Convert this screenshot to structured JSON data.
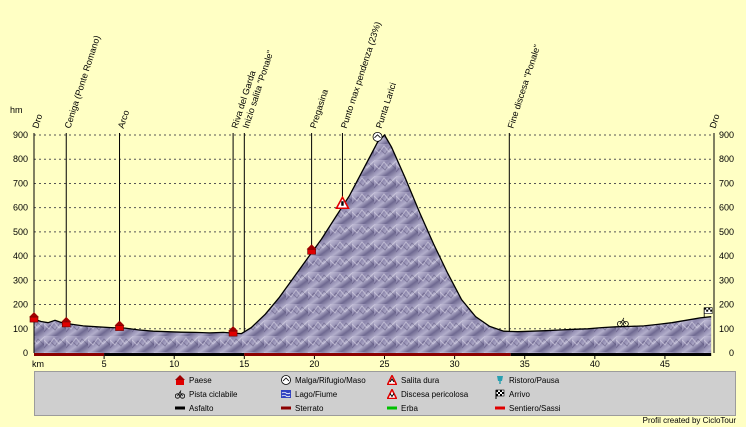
{
  "chart_data": {
    "type": "area",
    "ylabel": "hm",
    "xlabel": "km",
    "xlim": [
      0,
      48.5
    ],
    "ylim": [
      0,
      900
    ],
    "x_ticks": [
      5,
      10,
      15,
      20,
      25,
      30,
      35,
      40,
      45
    ],
    "y_ticks": [
      0,
      100,
      200,
      300,
      400,
      500,
      600,
      700,
      800,
      900
    ],
    "profile": {
      "x": [
        0,
        0.5,
        1.0,
        1.5,
        2.0,
        2.5,
        3.5,
        4.5,
        5.5,
        6.5,
        7.5,
        8.5,
        9.5,
        10.5,
        11.5,
        12.5,
        13.5,
        14.2,
        14.8,
        15.5,
        16.5,
        17.5,
        18.5,
        19.5,
        20.5,
        21.5,
        22.5,
        23.5,
        24.5,
        25.0,
        25.5,
        26.5,
        27.5,
        28.5,
        29.5,
        30.5,
        31.5,
        32.5,
        33.5,
        34.5,
        35.5,
        36.5,
        37.5,
        38.5,
        39.5,
        40.5,
        41.5,
        42.5,
        43.5,
        44.5,
        45.5,
        46.5,
        47.5,
        48.3
      ],
      "y": [
        140,
        130,
        125,
        135,
        125,
        120,
        112,
        108,
        105,
        103,
        95,
        90,
        88,
        86,
        85,
        83,
        85,
        82,
        80,
        105,
        160,
        230,
        310,
        390,
        470,
        560,
        650,
        760,
        870,
        900,
        850,
        720,
        580,
        450,
        330,
        220,
        150,
        110,
        90,
        88,
        90,
        92,
        95,
        98,
        100,
        105,
        108,
        110,
        112,
        118,
        125,
        135,
        145,
        150
      ]
    },
    "places": [
      {
        "label": "Dro",
        "x": 0,
        "y": 140,
        "marker": "paese"
      },
      {
        "label": "Ceniga (Ponte Romano)",
        "x": 2.3,
        "y": 120,
        "marker": "paese"
      },
      {
        "label": "Arco",
        "x": 6.1,
        "y": 105,
        "marker": "paese"
      },
      {
        "label": "Riva del Garda",
        "x": 14.2,
        "y": 82,
        "marker": "paese"
      },
      {
        "label": "Inizio salita \"Ponale\"",
        "x": 15.0,
        "y": 85,
        "marker": ""
      },
      {
        "label": "Pregasina",
        "x": 19.8,
        "y": 420,
        "marker": "paese"
      },
      {
        "label": "Punto max pendenza (23%)",
        "x": 22.0,
        "y": 610,
        "marker": "salita"
      },
      {
        "label": "Punta Larici",
        "x": 24.5,
        "y": 880,
        "marker": "malga"
      },
      {
        "label": "Fine discesa \"Ponale\"",
        "x": 33.9,
        "y": 90,
        "marker": ""
      },
      {
        "label": "Dro",
        "x": 48.3,
        "y": 150,
        "marker": "arrivo"
      }
    ],
    "bike_marker": {
      "x": 42.0,
      "y": 112
    },
    "surface": [
      {
        "from": 0,
        "to": 5,
        "type": "sterrato"
      },
      {
        "from": 5,
        "to": 15,
        "type": "asfalto"
      },
      {
        "from": 15,
        "to": 34,
        "type": "sterrato"
      },
      {
        "from": 34,
        "to": 48.3,
        "type": "asfalto"
      }
    ]
  },
  "legend": [
    {
      "label": "Paese",
      "icon": "house-icon"
    },
    {
      "label": "Malga/Rifugio/Maso",
      "icon": "hut-icon"
    },
    {
      "label": "Salita dura",
      "icon": "warning-up-icon"
    },
    {
      "label": "Ristoro/Pausa",
      "icon": "cup-icon"
    },
    {
      "label": "Pista ciclabile",
      "icon": "bike-icon"
    },
    {
      "label": "Lago/Fiume",
      "icon": "wave-icon"
    },
    {
      "label": "Discesa pericolosa",
      "icon": "warning-down-icon"
    },
    {
      "label": "Arrivo",
      "icon": "flag-icon"
    },
    {
      "label": "Asfalto",
      "icon": "asphalt-icon"
    },
    {
      "label": "Sterrato",
      "icon": "dirt-icon"
    },
    {
      "label": "Erba",
      "icon": "grass-icon"
    },
    {
      "label": "Sentiero/Sassi",
      "icon": "path-icon"
    }
  ],
  "colors": {
    "background": "#ffffc4",
    "area_fill": "#9a94b8",
    "area_dark": "#5e587c",
    "grid": "#555555",
    "house": "#e00000",
    "asfalto": "#000000",
    "sterrato": "#8b0000",
    "erba": "#00c000",
    "sentiero": "#e00000",
    "lago": "#3040c0",
    "ristoro": "#2aa0b0"
  },
  "credit": "Profil created by CicloTour"
}
